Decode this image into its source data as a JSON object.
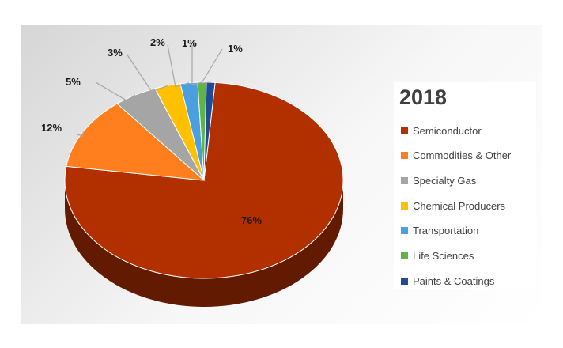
{
  "chart_data": {
    "type": "pie",
    "title": "2018",
    "labels": [
      "Semiconductor",
      "Commodities & Other",
      "Specialty Gas",
      "Chemical Producers",
      "Transportation",
      "Life Sciences",
      "Paints & Coatings"
    ],
    "values": [
      76,
      12,
      5,
      3,
      2,
      1,
      1
    ],
    "value_labels": [
      "76%",
      "12%",
      "5%",
      "3%",
      "2%",
      "1%",
      "1%"
    ],
    "colors": [
      "#B23000",
      "#FF7F1E",
      "#A5A5A5",
      "#FFC000",
      "#4A9FE0",
      "#5FB544",
      "#1F4A96"
    ],
    "legend_position": "right"
  }
}
